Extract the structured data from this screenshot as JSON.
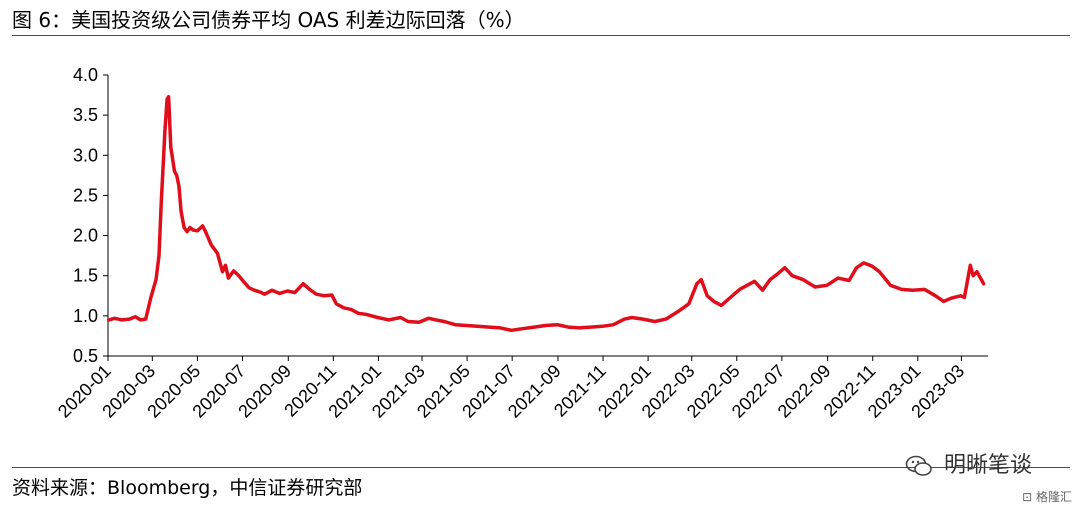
{
  "figure": {
    "title": "图 6：美国投资级公司债券平均 OAS 利差边际回落（%）",
    "source": "资料来源：Bloomberg，中信证券研究部",
    "watermark": "明晰笔谈",
    "badge": "格隆汇"
  },
  "colors": {
    "line": "#e00d1b",
    "rule": "#c9141a",
    "axis": "#000000"
  },
  "chart_data": {
    "type": "line",
    "title": "",
    "xlabel": "",
    "ylabel": "",
    "ylim": [
      0.5,
      4.0
    ],
    "yticks": [
      0.5,
      1.0,
      1.5,
      2.0,
      2.5,
      3.0,
      3.5,
      4.0
    ],
    "ytick_labels": [
      "0.5",
      "1.0",
      "1.5",
      "2.0",
      "2.5",
      "3.0",
      "3.5",
      "4.0"
    ],
    "xticks": [
      "2020-01",
      "2020-03",
      "2020-05",
      "2020-07",
      "2020-09",
      "2020-11",
      "2021-01",
      "2021-03",
      "2021-05",
      "2021-07",
      "2021-09",
      "2021-11",
      "2022-01",
      "2022-03",
      "2022-05",
      "2022-07",
      "2022-09",
      "2022-11",
      "2023-01",
      "2023-03"
    ],
    "grid": false,
    "legend": "none",
    "series": [
      {
        "points": [
          [
            "2020-01-02",
            0.95
          ],
          [
            "2020-01-10",
            0.97
          ],
          [
            "2020-01-20",
            0.95
          ],
          [
            "2020-01-30",
            0.96
          ],
          [
            "2020-02-07",
            0.99
          ],
          [
            "2020-02-14",
            0.95
          ],
          [
            "2020-02-21",
            0.96
          ],
          [
            "2020-02-28",
            1.23
          ],
          [
            "2020-03-06",
            1.45
          ],
          [
            "2020-03-10",
            1.75
          ],
          [
            "2020-03-13",
            2.4
          ],
          [
            "2020-03-18",
            3.3
          ],
          [
            "2020-03-21",
            3.7
          ],
          [
            "2020-03-23",
            3.73
          ],
          [
            "2020-03-26",
            3.1
          ],
          [
            "2020-03-31",
            2.8
          ],
          [
            "2020-04-03",
            2.75
          ],
          [
            "2020-04-06",
            2.62
          ],
          [
            "2020-04-09",
            2.3
          ],
          [
            "2020-04-13",
            2.1
          ],
          [
            "2020-04-17",
            2.05
          ],
          [
            "2020-04-21",
            2.1
          ],
          [
            "2020-04-25",
            2.07
          ],
          [
            "2020-05-01",
            2.06
          ],
          [
            "2020-05-08",
            2.12
          ],
          [
            "2020-05-12",
            2.05
          ],
          [
            "2020-05-20",
            1.88
          ],
          [
            "2020-05-28",
            1.78
          ],
          [
            "2020-06-04",
            1.55
          ],
          [
            "2020-06-08",
            1.63
          ],
          [
            "2020-06-12",
            1.47
          ],
          [
            "2020-06-19",
            1.56
          ],
          [
            "2020-06-26",
            1.5
          ],
          [
            "2020-07-03",
            1.42
          ],
          [
            "2020-07-10",
            1.35
          ],
          [
            "2020-07-17",
            1.32
          ],
          [
            "2020-07-24",
            1.3
          ],
          [
            "2020-07-31",
            1.27
          ],
          [
            "2020-08-10",
            1.32
          ],
          [
            "2020-08-20",
            1.28
          ],
          [
            "2020-08-31",
            1.31
          ],
          [
            "2020-09-10",
            1.29
          ],
          [
            "2020-09-21",
            1.4
          ],
          [
            "2020-09-30",
            1.33
          ],
          [
            "2020-10-09",
            1.27
          ],
          [
            "2020-10-20",
            1.25
          ],
          [
            "2020-10-30",
            1.26
          ],
          [
            "2020-11-05",
            1.15
          ],
          [
            "2020-11-15",
            1.1
          ],
          [
            "2020-11-25",
            1.08
          ],
          [
            "2020-12-05",
            1.03
          ],
          [
            "2020-12-15",
            1.02
          ],
          [
            "2020-12-31",
            0.98
          ],
          [
            "2021-01-15",
            0.95
          ],
          [
            "2021-01-31",
            0.98
          ],
          [
            "2021-02-10",
            0.93
          ],
          [
            "2021-02-25",
            0.92
          ],
          [
            "2021-03-10",
            0.97
          ],
          [
            "2021-03-20",
            0.95
          ],
          [
            "2021-03-31",
            0.93
          ],
          [
            "2021-04-15",
            0.89
          ],
          [
            "2021-04-30",
            0.88
          ],
          [
            "2021-05-15",
            0.87
          ],
          [
            "2021-05-31",
            0.86
          ],
          [
            "2021-06-15",
            0.85
          ],
          [
            "2021-06-30",
            0.82
          ],
          [
            "2021-07-15",
            0.84
          ],
          [
            "2021-07-31",
            0.86
          ],
          [
            "2021-08-15",
            0.88
          ],
          [
            "2021-08-31",
            0.89
          ],
          [
            "2021-09-15",
            0.86
          ],
          [
            "2021-09-30",
            0.85
          ],
          [
            "2021-10-15",
            0.86
          ],
          [
            "2021-10-31",
            0.87
          ],
          [
            "2021-11-15",
            0.89
          ],
          [
            "2021-11-30",
            0.96
          ],
          [
            "2021-12-10",
            0.98
          ],
          [
            "2021-12-25",
            0.96
          ],
          [
            "2022-01-10",
            0.93
          ],
          [
            "2022-01-25",
            0.96
          ],
          [
            "2022-02-10",
            1.05
          ],
          [
            "2022-02-25",
            1.15
          ],
          [
            "2022-03-08",
            1.4
          ],
          [
            "2022-03-14",
            1.45
          ],
          [
            "2022-03-22",
            1.25
          ],
          [
            "2022-03-31",
            1.18
          ],
          [
            "2022-04-10",
            1.13
          ],
          [
            "2022-04-25",
            1.25
          ],
          [
            "2022-05-05",
            1.33
          ],
          [
            "2022-05-15",
            1.38
          ],
          [
            "2022-05-25",
            1.43
          ],
          [
            "2022-06-05",
            1.32
          ],
          [
            "2022-06-15",
            1.45
          ],
          [
            "2022-06-25",
            1.52
          ],
          [
            "2022-07-05",
            1.6
          ],
          [
            "2022-07-15",
            1.5
          ],
          [
            "2022-07-30",
            1.45
          ],
          [
            "2022-08-15",
            1.36
          ],
          [
            "2022-08-31",
            1.38
          ],
          [
            "2022-09-15",
            1.47
          ],
          [
            "2022-09-30",
            1.44
          ],
          [
            "2022-10-10",
            1.6
          ],
          [
            "2022-10-20",
            1.66
          ],
          [
            "2022-10-31",
            1.62
          ],
          [
            "2022-11-10",
            1.55
          ],
          [
            "2022-11-25",
            1.38
          ],
          [
            "2022-12-10",
            1.33
          ],
          [
            "2022-12-25",
            1.32
          ],
          [
            "2023-01-10",
            1.33
          ],
          [
            "2023-01-25",
            1.25
          ],
          [
            "2023-02-05",
            1.18
          ],
          [
            "2023-02-15",
            1.22
          ],
          [
            "2023-02-28",
            1.25
          ],
          [
            "2023-03-05",
            1.23
          ],
          [
            "2023-03-13",
            1.63
          ],
          [
            "2023-03-17",
            1.5
          ],
          [
            "2023-03-22",
            1.55
          ],
          [
            "2023-03-28",
            1.45
          ],
          [
            "2023-03-31",
            1.4
          ]
        ]
      }
    ]
  }
}
